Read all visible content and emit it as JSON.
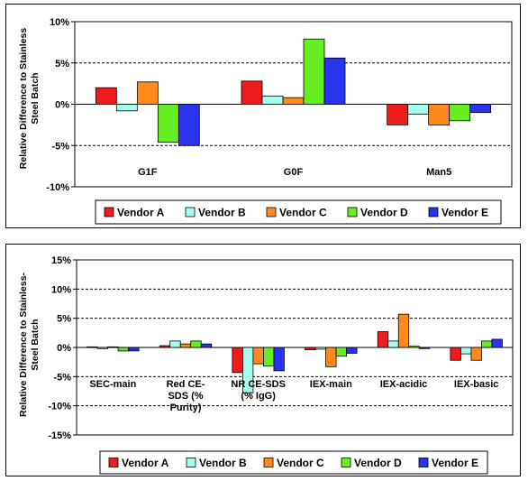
{
  "colors": {
    "Vendor A": "#ee1c1c",
    "Vendor B": "#a6ffee",
    "Vendor C": "#ff8a1c",
    "Vendor D": "#66ee22",
    "Vendor E": "#2a33ee"
  },
  "chart_data": [
    {
      "type": "bar",
      "title": "",
      "ylabel": [
        "Relative Difference to Stainless",
        "Steel Batch"
      ],
      "ylim": [
        -10,
        10
      ],
      "yticks": [
        "-10%",
        "-5%",
        "0%",
        "5%",
        "10%"
      ],
      "gridlines": "dashed horizontal",
      "legend_position": "bottom",
      "categories": [
        [
          "G1F"
        ],
        [
          "G0F"
        ],
        [
          "Man5"
        ]
      ],
      "series": [
        {
          "name": "Vendor A",
          "values": [
            2.0,
            2.8,
            -2.5
          ]
        },
        {
          "name": "Vendor B",
          "values": [
            -0.8,
            1.0,
            -1.2
          ]
        },
        {
          "name": "Vendor C",
          "values": [
            2.7,
            0.8,
            -2.5
          ]
        },
        {
          "name": "Vendor D",
          "values": [
            -4.6,
            7.9,
            -2.0
          ]
        },
        {
          "name": "Vendor E",
          "values": [
            -5.0,
            5.6,
            -1.0
          ]
        }
      ]
    },
    {
      "type": "bar",
      "title": "",
      "ylabel": [
        "Relative Difference to Stainless-",
        "Steel Batch"
      ],
      "ylim": [
        -15,
        15
      ],
      "yticks": [
        "-15%",
        "-10%",
        "-5%",
        "0%",
        "5%",
        "10%",
        "15%"
      ],
      "gridlines": "dashed horizontal",
      "legend_position": "bottom",
      "categories": [
        [
          "SEC-main"
        ],
        [
          "Red CE-",
          "SDS  (%",
          "Purity)"
        ],
        [
          "NR CE-SDS",
          "(% IgG)"
        ],
        [
          "IEX-main"
        ],
        [
          "IEX-acidic"
        ],
        [
          "IEX-basic"
        ]
      ],
      "series": [
        {
          "name": "Vendor A",
          "values": [
            0.1,
            0.3,
            -4.3,
            -0.4,
            2.7,
            -2.2
          ]
        },
        {
          "name": "Vendor B",
          "values": [
            -0.2,
            1.1,
            -7.8,
            -0.3,
            1.1,
            -1.1
          ]
        },
        {
          "name": "Vendor C",
          "values": [
            0.1,
            0.6,
            -2.8,
            -3.3,
            5.7,
            -2.2
          ]
        },
        {
          "name": "Vendor D",
          "values": [
            -0.6,
            1.1,
            -3.2,
            -1.5,
            0.2,
            1.1
          ]
        },
        {
          "name": "Vendor E",
          "values": [
            -0.6,
            0.6,
            -4.0,
            -1.0,
            -0.2,
            1.4
          ]
        }
      ]
    }
  ]
}
